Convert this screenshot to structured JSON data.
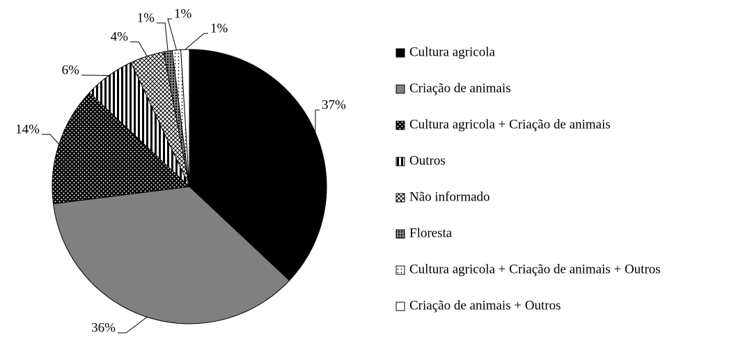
{
  "chart_data": {
    "type": "pie",
    "categories": [
      "Cultura agricola",
      "Criação de animais",
      "Cultura agricola + Criação de animais",
      "Outros",
      "Não informado",
      "Floresta",
      "Cultura agricola + Criação de animais + Outros",
      "Criação de animais + Outros"
    ],
    "values": [
      37,
      36,
      14,
      6,
      4,
      1,
      1,
      1
    ],
    "value_labels": [
      "37%",
      "36%",
      "14%",
      "6%",
      "4%",
      "1%",
      "1%",
      "1%"
    ],
    "colors": [
      "#000000",
      "#808080",
      "#000000",
      "#ffffff",
      "#ffffff",
      "#808080",
      "#ffffff",
      "#ffffff"
    ],
    "patterns": [
      "solid",
      "solid",
      "dots",
      "vertical-stripes",
      "hatch",
      "grid",
      "sparse-dots",
      "solid"
    ],
    "legend": "right"
  }
}
